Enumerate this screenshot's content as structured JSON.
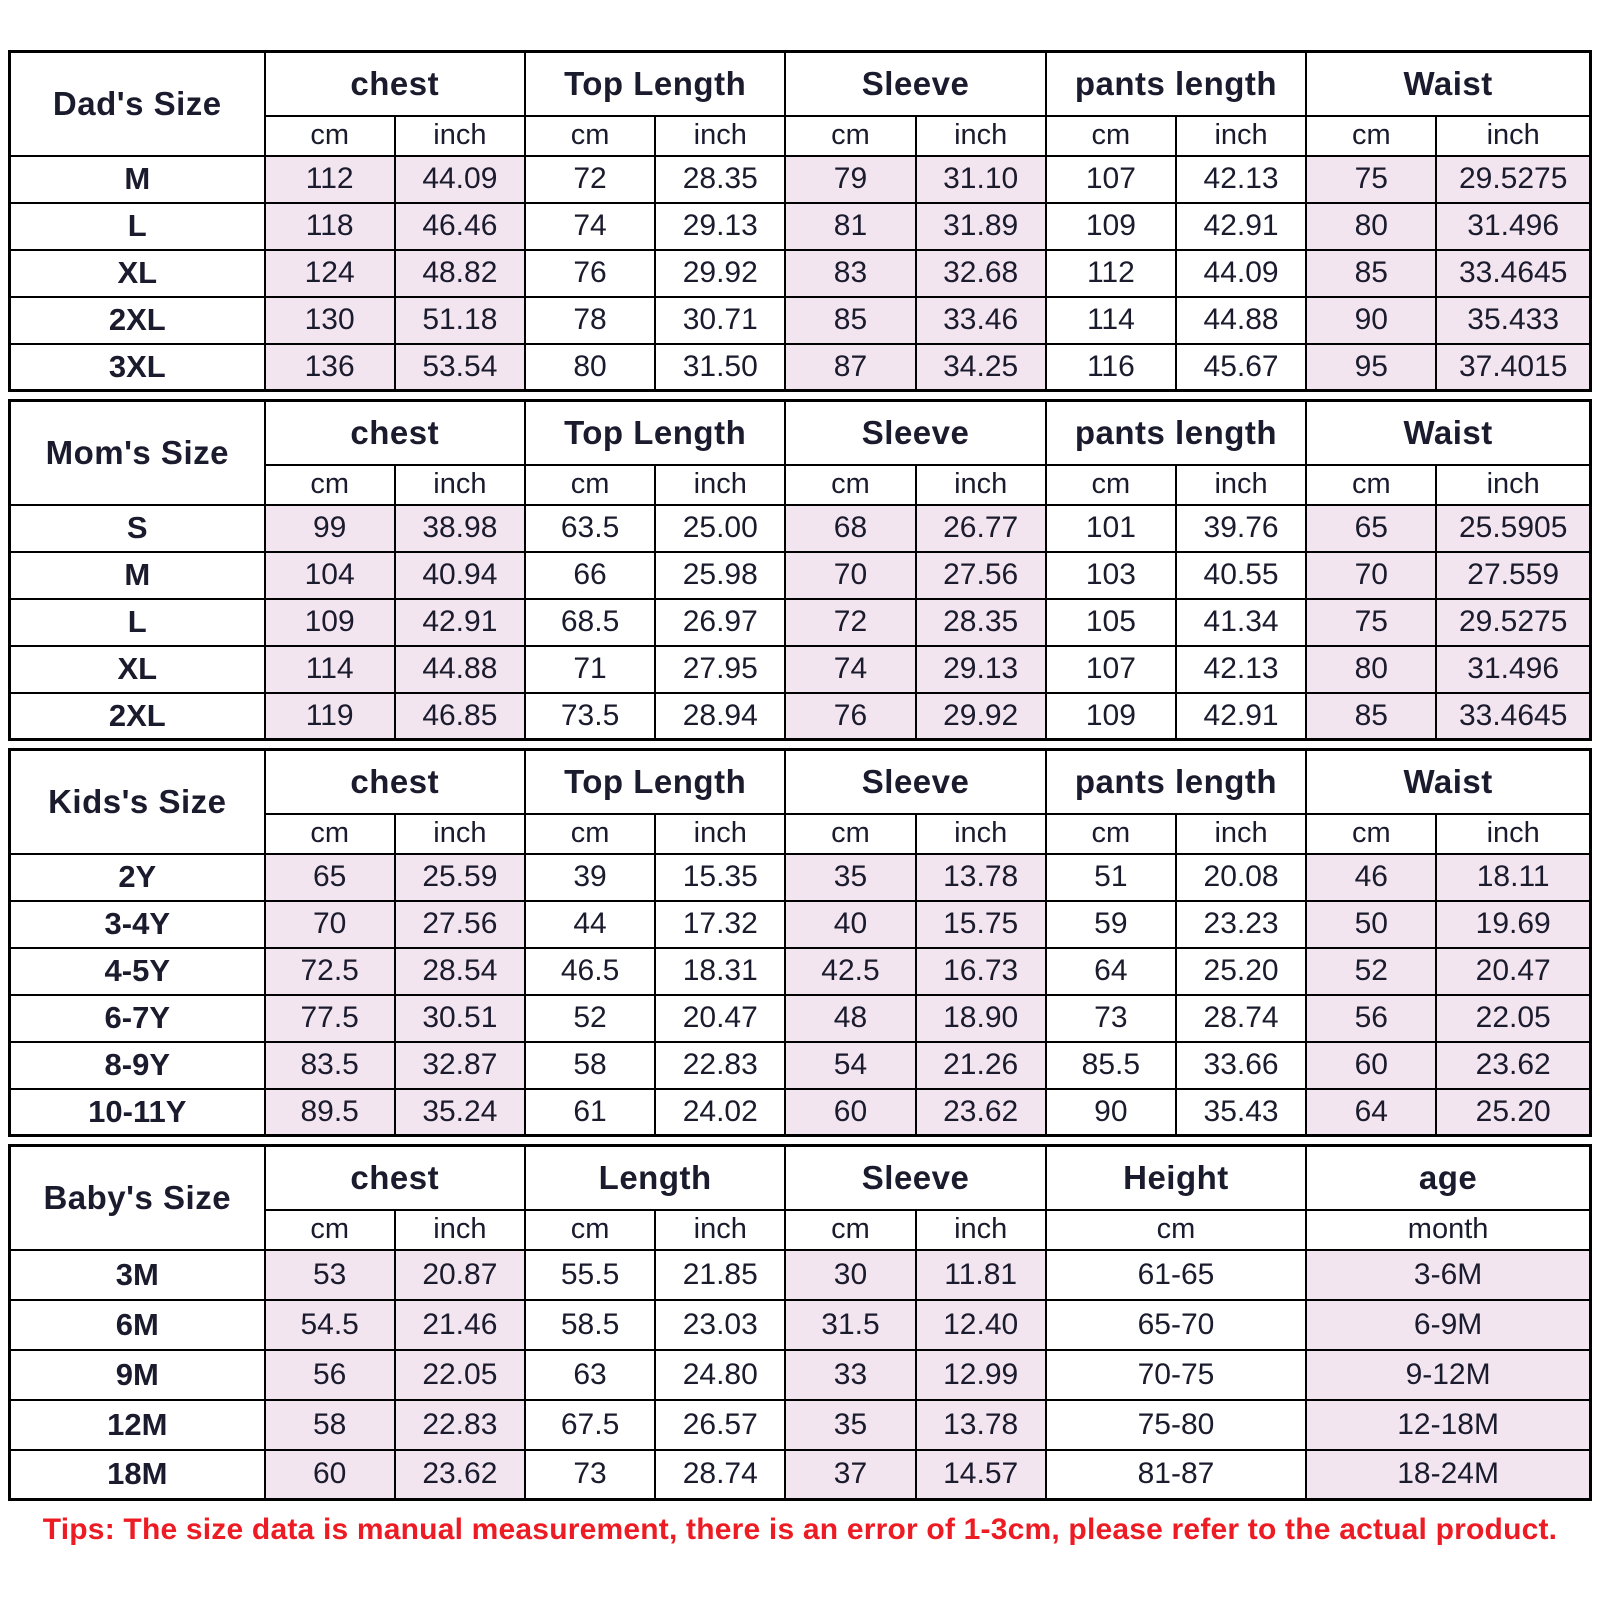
{
  "page": {
    "tip": "Tips: The size data is manual measurement, there is an error of 1-3cm, please refer to the actual product."
  },
  "colors": {
    "highlight": "#f2e5f0",
    "border": "#000000",
    "text": "#1b1b2e",
    "tip": "#ed1c24"
  },
  "sections": [
    {
      "id": "dad",
      "label": "Dad's Size",
      "groups": [
        {
          "label": "chest",
          "units": [
            "cm",
            "inch"
          ],
          "highlight": true
        },
        {
          "label": "Top Length",
          "units": [
            "cm",
            "inch"
          ],
          "highlight": false
        },
        {
          "label": "Sleeve",
          "units": [
            "cm",
            "inch"
          ],
          "highlight": true
        },
        {
          "label": "pants length",
          "units": [
            "cm",
            "inch"
          ],
          "highlight": false
        },
        {
          "label": "Waist",
          "units": [
            "cm",
            "inch"
          ],
          "highlight": true
        }
      ],
      "rows": [
        {
          "size": "M",
          "values": [
            [
              "112",
              "44.09"
            ],
            [
              "72",
              "28.35"
            ],
            [
              "79",
              "31.10"
            ],
            [
              "107",
              "42.13"
            ],
            [
              "75",
              "29.5275"
            ]
          ]
        },
        {
          "size": "L",
          "values": [
            [
              "118",
              "46.46"
            ],
            [
              "74",
              "29.13"
            ],
            [
              "81",
              "31.89"
            ],
            [
              "109",
              "42.91"
            ],
            [
              "80",
              "31.496"
            ]
          ]
        },
        {
          "size": "XL",
          "values": [
            [
              "124",
              "48.82"
            ],
            [
              "76",
              "29.92"
            ],
            [
              "83",
              "32.68"
            ],
            [
              "112",
              "44.09"
            ],
            [
              "85",
              "33.4645"
            ]
          ]
        },
        {
          "size": "2XL",
          "values": [
            [
              "130",
              "51.18"
            ],
            [
              "78",
              "30.71"
            ],
            [
              "85",
              "33.46"
            ],
            [
              "114",
              "44.88"
            ],
            [
              "90",
              "35.433"
            ]
          ]
        },
        {
          "size": "3XL",
          "values": [
            [
              "136",
              "53.54"
            ],
            [
              "80",
              "31.50"
            ],
            [
              "87",
              "34.25"
            ],
            [
              "116",
              "45.67"
            ],
            [
              "95",
              "37.4015"
            ]
          ]
        }
      ]
    },
    {
      "id": "mom",
      "label": "Mom's Size",
      "groups": [
        {
          "label": "chest",
          "units": [
            "cm",
            "inch"
          ],
          "highlight": true
        },
        {
          "label": "Top Length",
          "units": [
            "cm",
            "inch"
          ],
          "highlight": false
        },
        {
          "label": "Sleeve",
          "units": [
            "cm",
            "inch"
          ],
          "highlight": true
        },
        {
          "label": "pants length",
          "units": [
            "cm",
            "inch"
          ],
          "highlight": false
        },
        {
          "label": "Waist",
          "units": [
            "cm",
            "inch"
          ],
          "highlight": true
        }
      ],
      "rows": [
        {
          "size": "S",
          "values": [
            [
              "99",
              "38.98"
            ],
            [
              "63.5",
              "25.00"
            ],
            [
              "68",
              "26.77"
            ],
            [
              "101",
              "39.76"
            ],
            [
              "65",
              "25.5905"
            ]
          ]
        },
        {
          "size": "M",
          "values": [
            [
              "104",
              "40.94"
            ],
            [
              "66",
              "25.98"
            ],
            [
              "70",
              "27.56"
            ],
            [
              "103",
              "40.55"
            ],
            [
              "70",
              "27.559"
            ]
          ]
        },
        {
          "size": "L",
          "values": [
            [
              "109",
              "42.91"
            ],
            [
              "68.5",
              "26.97"
            ],
            [
              "72",
              "28.35"
            ],
            [
              "105",
              "41.34"
            ],
            [
              "75",
              "29.5275"
            ]
          ]
        },
        {
          "size": "XL",
          "values": [
            [
              "114",
              "44.88"
            ],
            [
              "71",
              "27.95"
            ],
            [
              "74",
              "29.13"
            ],
            [
              "107",
              "42.13"
            ],
            [
              "80",
              "31.496"
            ]
          ]
        },
        {
          "size": "2XL",
          "values": [
            [
              "119",
              "46.85"
            ],
            [
              "73.5",
              "28.94"
            ],
            [
              "76",
              "29.92"
            ],
            [
              "109",
              "42.91"
            ],
            [
              "85",
              "33.4645"
            ]
          ]
        }
      ]
    },
    {
      "id": "kids",
      "label": "Kids's Size",
      "groups": [
        {
          "label": "chest",
          "units": [
            "cm",
            "inch"
          ],
          "highlight": true
        },
        {
          "label": "Top Length",
          "units": [
            "cm",
            "inch"
          ],
          "highlight": false
        },
        {
          "label": "Sleeve",
          "units": [
            "cm",
            "inch"
          ],
          "highlight": true
        },
        {
          "label": "pants length",
          "units": [
            "cm",
            "inch"
          ],
          "highlight": false
        },
        {
          "label": "Waist",
          "units": [
            "cm",
            "inch"
          ],
          "highlight": true
        }
      ],
      "rows": [
        {
          "size": "2Y",
          "values": [
            [
              "65",
              "25.59"
            ],
            [
              "39",
              "15.35"
            ],
            [
              "35",
              "13.78"
            ],
            [
              "51",
              "20.08"
            ],
            [
              "46",
              "18.11"
            ]
          ]
        },
        {
          "size": "3-4Y",
          "values": [
            [
              "70",
              "27.56"
            ],
            [
              "44",
              "17.32"
            ],
            [
              "40",
              "15.75"
            ],
            [
              "59",
              "23.23"
            ],
            [
              "50",
              "19.69"
            ]
          ]
        },
        {
          "size": "4-5Y",
          "values": [
            [
              "72.5",
              "28.54"
            ],
            [
              "46.5",
              "18.31"
            ],
            [
              "42.5",
              "16.73"
            ],
            [
              "64",
              "25.20"
            ],
            [
              "52",
              "20.47"
            ]
          ]
        },
        {
          "size": "6-7Y",
          "values": [
            [
              "77.5",
              "30.51"
            ],
            [
              "52",
              "20.47"
            ],
            [
              "48",
              "18.90"
            ],
            [
              "73",
              "28.74"
            ],
            [
              "56",
              "22.05"
            ]
          ]
        },
        {
          "size": "8-9Y",
          "values": [
            [
              "83.5",
              "32.87"
            ],
            [
              "58",
              "22.83"
            ],
            [
              "54",
              "21.26"
            ],
            [
              "85.5",
              "33.66"
            ],
            [
              "60",
              "23.62"
            ]
          ]
        },
        {
          "size": "10-11Y",
          "values": [
            [
              "89.5",
              "35.24"
            ],
            [
              "61",
              "24.02"
            ],
            [
              "60",
              "23.62"
            ],
            [
              "90",
              "35.43"
            ],
            [
              "64",
              "25.20"
            ]
          ]
        }
      ]
    },
    {
      "id": "baby",
      "label": "Baby's Size",
      "groups": [
        {
          "label": "chest",
          "units": [
            "cm",
            "inch"
          ],
          "highlight": true
        },
        {
          "label": "Length",
          "units": [
            "cm",
            "inch"
          ],
          "highlight": false
        },
        {
          "label": "Sleeve",
          "units": [
            "cm",
            "inch"
          ],
          "highlight": true
        },
        {
          "label": "Height",
          "units": [
            "cm"
          ],
          "highlight": false
        },
        {
          "label": "age",
          "units": [
            "month"
          ],
          "highlight": true
        }
      ],
      "rows": [
        {
          "size": "3M",
          "values": [
            [
              "53",
              "20.87"
            ],
            [
              "55.5",
              "21.85"
            ],
            [
              "30",
              "11.81"
            ],
            [
              "61-65"
            ],
            [
              "3-6M"
            ]
          ]
        },
        {
          "size": "6M",
          "values": [
            [
              "54.5",
              "21.46"
            ],
            [
              "58.5",
              "23.03"
            ],
            [
              "31.5",
              "12.40"
            ],
            [
              "65-70"
            ],
            [
              "6-9M"
            ]
          ]
        },
        {
          "size": "9M",
          "values": [
            [
              "56",
              "22.05"
            ],
            [
              "63",
              "24.80"
            ],
            [
              "33",
              "12.99"
            ],
            [
              "70-75"
            ],
            [
              "9-12M"
            ]
          ]
        },
        {
          "size": "12M",
          "values": [
            [
              "58",
              "22.83"
            ],
            [
              "67.5",
              "26.57"
            ],
            [
              "35",
              "13.78"
            ],
            [
              "75-80"
            ],
            [
              "12-18M"
            ]
          ]
        },
        {
          "size": "18M",
          "values": [
            [
              "60",
              "23.62"
            ],
            [
              "73",
              "28.74"
            ],
            [
              "37",
              "14.57"
            ],
            [
              "81-87"
            ],
            [
              "18-24M"
            ]
          ]
        }
      ]
    }
  ]
}
